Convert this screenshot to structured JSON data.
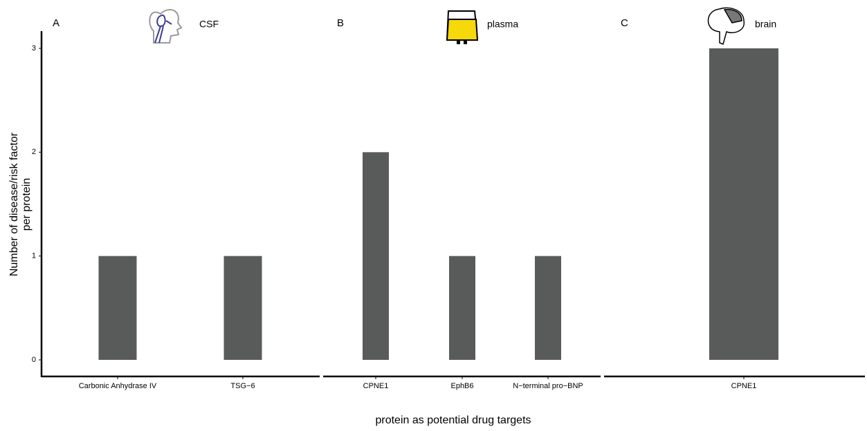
{
  "y_label": [
    "Number of disease/risk factor",
    "per protein"
  ],
  "x_label": "protein as potential drug targets",
  "chart_data": [
    {
      "type": "bar",
      "panel": "A",
      "title": "CSF",
      "categories": [
        "Carbonic Anhydrase IV",
        "TSG−6"
      ],
      "values": [
        1,
        1
      ],
      "color": "#595b5a",
      "ylim": [
        0,
        3
      ],
      "yticks": [
        0,
        1,
        2,
        3
      ]
    },
    {
      "type": "bar",
      "panel": "B",
      "title": "plasma",
      "categories": [
        "CPNE1",
        "EphB6",
        "N−terminal pro−BNP"
      ],
      "values": [
        2,
        1,
        1
      ],
      "color": "#595b5a",
      "ylim": [
        0,
        3
      ]
    },
    {
      "type": "bar",
      "panel": "C",
      "title": "brain",
      "categories": [
        "CPNE1"
      ],
      "values": [
        3
      ],
      "color": "#595b5a",
      "ylim": [
        0,
        3
      ]
    }
  ]
}
